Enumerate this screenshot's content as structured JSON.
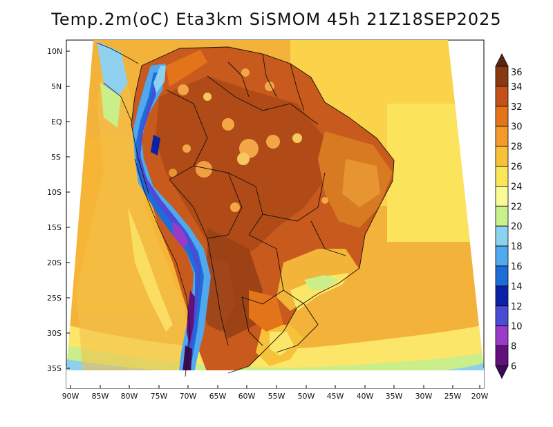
{
  "title": "Temp.2m(oC) Eta3km SiSMOM 45h 21Z18SEP2025",
  "map": {
    "lat_labels": [
      "10N",
      "5N",
      "EQ",
      "5S",
      "10S",
      "15S",
      "20S",
      "25S",
      "30S",
      "35S"
    ],
    "lon_labels": [
      "90W",
      "85W",
      "80W",
      "75W",
      "70W",
      "65W",
      "60W",
      "55W",
      "50W",
      "45W",
      "40W",
      "35W",
      "30W",
      "25W",
      "20W"
    ],
    "lat_range": [
      12,
      -38
    ],
    "lon_range": [
      -90,
      -20
    ]
  },
  "colorbar": {
    "labels": [
      "36",
      "34",
      "32",
      "30",
      "28",
      "26",
      "24",
      "22",
      "20",
      "18",
      "16",
      "14",
      "12",
      "10",
      "8",
      "6"
    ],
    "colors": [
      "#5a2612",
      "#8b3a10",
      "#c4511a",
      "#e3741a",
      "#f39a2a",
      "#f7c23a",
      "#fbe65a",
      "#fafa96",
      "#c8f08c",
      "#8cd2ee",
      "#50a8ee",
      "#1f6bd8",
      "#0b22a8",
      "#4b4bd6",
      "#9a3ac8",
      "#63117a",
      "#3d0a55"
    ]
  }
}
